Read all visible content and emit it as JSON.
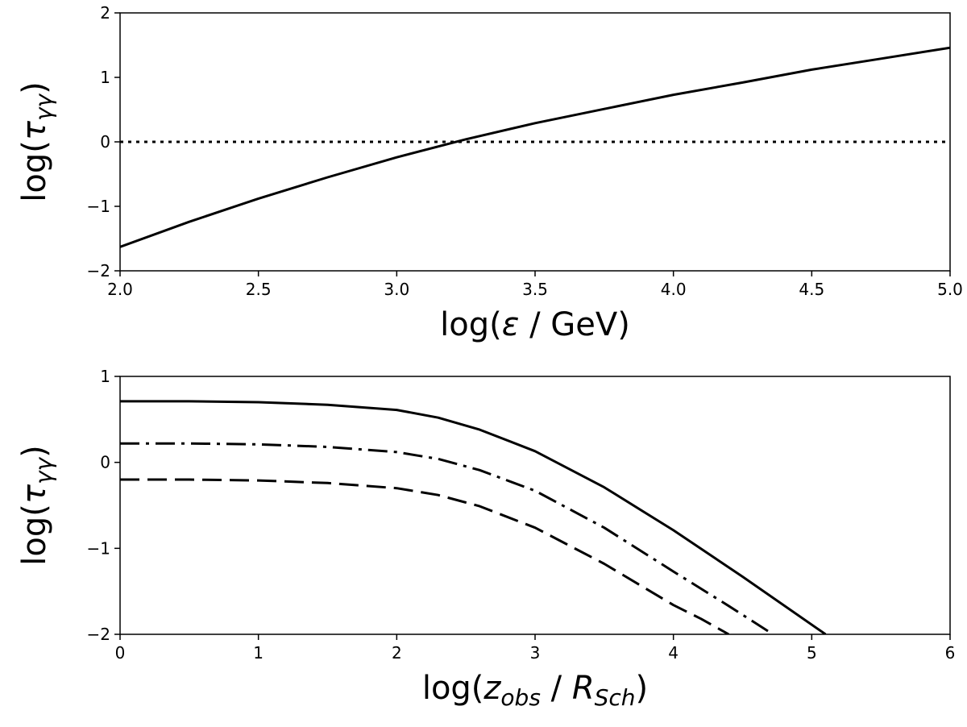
{
  "chart_data": [
    {
      "type": "line",
      "xlabel": {
        "pre": "log(",
        "sym": "ε",
        "post": " / GeV)"
      },
      "ylabel": {
        "pre": "log(",
        "sym": "τ",
        "sub": "γγ",
        "post": ")"
      },
      "xlim": [
        2.0,
        5.0
      ],
      "ylim": [
        -2,
        2
      ],
      "xticks": [
        "2.0",
        "2.5",
        "3.0",
        "3.5",
        "4.0",
        "4.5",
        "5.0"
      ],
      "yticks": [
        "−2",
        "−1",
        "0",
        "1",
        "2"
      ],
      "grid": false,
      "series": [
        {
          "style": "solid",
          "x": [
            2.0,
            2.25,
            2.5,
            2.75,
            3.0,
            3.25,
            3.5,
            3.75,
            4.0,
            4.25,
            4.5,
            4.75,
            5.0
          ],
          "y": [
            -1.63,
            -1.24,
            -0.88,
            -0.55,
            -0.24,
            0.04,
            0.29,
            0.51,
            0.73,
            0.92,
            1.12,
            1.29,
            1.46
          ]
        },
        {
          "style": "dotted",
          "x": [
            2.0,
            5.0
          ],
          "y": [
            0,
            0
          ]
        }
      ]
    },
    {
      "type": "line",
      "xlabel": {
        "pre": "log(",
        "sym": "z",
        "symsub": "obs",
        "mid": " / ",
        "sym2": "R",
        "sym2sub": "Sch",
        "post": ")"
      },
      "ylabel": {
        "pre": "log(",
        "sym": "τ",
        "sub": "γγ",
        "post": ")"
      },
      "xlim": [
        0,
        6
      ],
      "ylim": [
        -2,
        1
      ],
      "xticks": [
        "0",
        "1",
        "2",
        "3",
        "4",
        "5",
        "6"
      ],
      "yticks": [
        "−2",
        "−1",
        "0",
        "1"
      ],
      "grid": false,
      "series": [
        {
          "style": "solid",
          "x": [
            0,
            0.5,
            1.0,
            1.5,
            2.0,
            2.3,
            2.6,
            3.0,
            3.5,
            4.0,
            4.5,
            5.1
          ],
          "y": [
            0.71,
            0.71,
            0.7,
            0.67,
            0.61,
            0.52,
            0.38,
            0.13,
            -0.29,
            -0.79,
            -1.33,
            -2.0
          ]
        },
        {
          "style": "dashdot",
          "x": [
            0,
            0.5,
            1.0,
            1.5,
            2.0,
            2.3,
            2.6,
            3.0,
            3.5,
            4.0,
            4.4,
            4.72
          ],
          "y": [
            0.22,
            0.22,
            0.21,
            0.18,
            0.12,
            0.04,
            -0.09,
            -0.33,
            -0.76,
            -1.27,
            -1.67,
            -2.0
          ]
        },
        {
          "style": "dashed",
          "x": [
            0,
            0.5,
            1.0,
            1.5,
            2.0,
            2.3,
            2.6,
            3.0,
            3.5,
            4.0,
            4.2,
            4.4
          ],
          "y": [
            -0.2,
            -0.2,
            -0.21,
            -0.24,
            -0.3,
            -0.38,
            -0.51,
            -0.76,
            -1.18,
            -1.66,
            -1.82,
            -2.0
          ]
        }
      ]
    }
  ]
}
